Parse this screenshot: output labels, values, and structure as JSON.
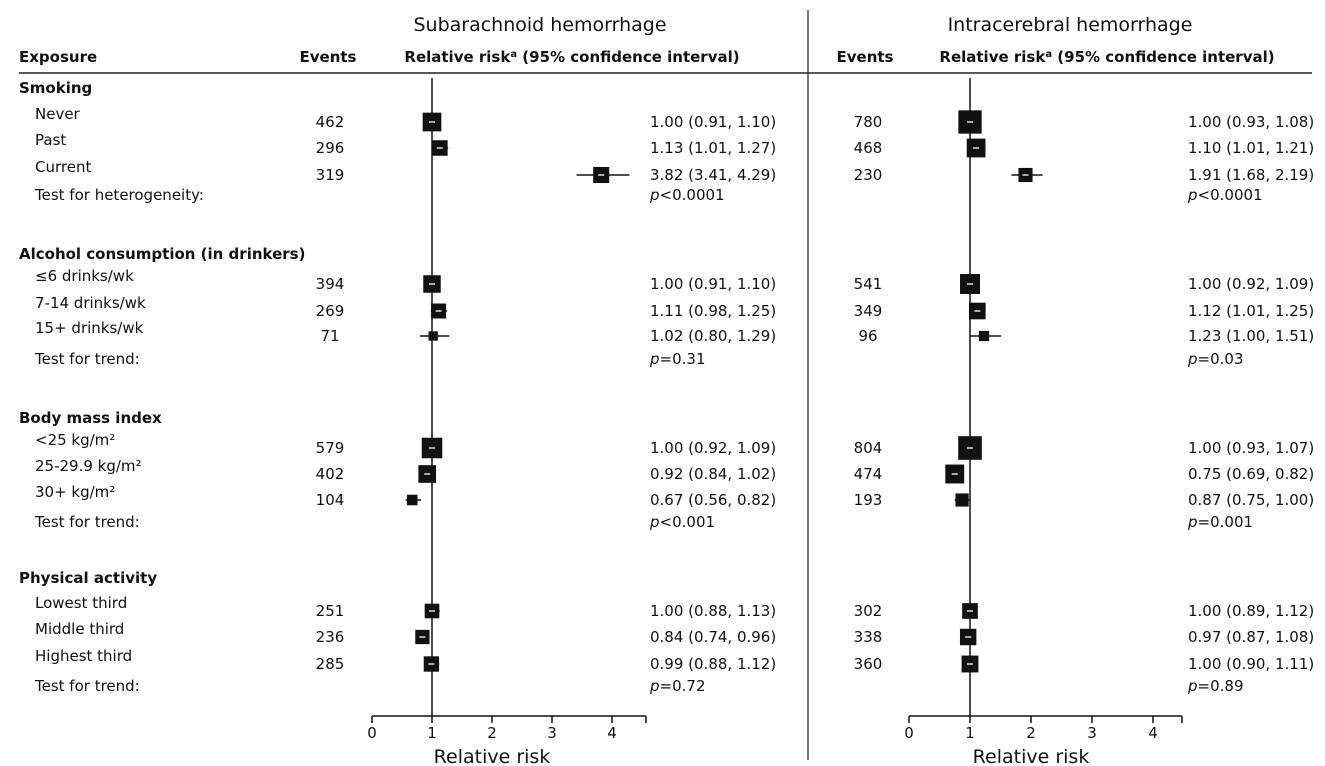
{
  "chart_data": {
    "type": "forest",
    "exposure_header": "Exposure",
    "events_header": "Events",
    "rr_header_main": "Relative risk",
    "rr_header_sup": "a",
    "rr_header_ci": "(95% confidence interval)",
    "sections": [
      {
        "title": "Smoking",
        "rows": [
          {
            "label": "Never",
            "sah": {
              "events": "462",
              "text": "1.00 (0.91, 1.10)",
              "rr": 1.0,
              "lo": 0.91,
              "hi": 1.1,
              "weight": 462
            },
            "ich": {
              "events": "780",
              "text": "1.00 (0.93, 1.08)",
              "rr": 1.0,
              "lo": 0.93,
              "hi": 1.08,
              "weight": 780
            }
          },
          {
            "label": "Past",
            "sah": {
              "events": "296",
              "text": "1.13 (1.01, 1.27)",
              "rr": 1.13,
              "lo": 1.01,
              "hi": 1.27,
              "weight": 296
            },
            "ich": {
              "events": "468",
              "text": "1.10 (1.01, 1.21)",
              "rr": 1.1,
              "lo": 1.01,
              "hi": 1.21,
              "weight": 468
            }
          },
          {
            "label": "Current",
            "sah": {
              "events": "319",
              "text": "3.82 (3.41, 4.29)",
              "rr": 3.82,
              "lo": 3.41,
              "hi": 4.29,
              "weight": 319
            },
            "ich": {
              "events": "230",
              "text": "1.91 (1.68, 2.19)",
              "rr": 1.91,
              "lo": 1.68,
              "hi": 2.19,
              "weight": 230
            }
          }
        ],
        "test_label": "Test for heterogeneity:",
        "sah_p": "<0.0001",
        "ich_p": "<0.0001"
      },
      {
        "title": "Alcohol consumption (in drinkers)",
        "rows": [
          {
            "label": "≤6 drinks/wk",
            "sah": {
              "events": "394",
              "text": "1.00 (0.91, 1.10)",
              "rr": 1.0,
              "lo": 0.91,
              "hi": 1.1,
              "weight": 394
            },
            "ich": {
              "events": "541",
              "text": "1.00 (0.92, 1.09)",
              "rr": 1.0,
              "lo": 0.92,
              "hi": 1.09,
              "weight": 541
            }
          },
          {
            "label": "7-14 drinks/wk",
            "sah": {
              "events": "269",
              "text": "1.11 (0.98, 1.25)",
              "rr": 1.11,
              "lo": 0.98,
              "hi": 1.25,
              "weight": 269
            },
            "ich": {
              "events": "349",
              "text": "1.12 (1.01, 1.25)",
              "rr": 1.12,
              "lo": 1.01,
              "hi": 1.25,
              "weight": 349
            }
          },
          {
            "label": "15+ drinks/wk",
            "sah": {
              "events": "71",
              "text": "1.02 (0.80, 1.29)",
              "rr": 1.02,
              "lo": 0.8,
              "hi": 1.29,
              "weight": 71
            },
            "ich": {
              "events": "96",
              "text": "1.23 (1.00, 1.51)",
              "rr": 1.23,
              "lo": 1.0,
              "hi": 1.51,
              "weight": 96
            }
          }
        ],
        "test_label": "Test for trend:",
        "sah_p": "=0.31",
        "ich_p": "=0.03"
      },
      {
        "title": "Body mass index",
        "rows": [
          {
            "label": "<25 kg/m²",
            "sah": {
              "events": "579",
              "text": "1.00 (0.92, 1.09)",
              "rr": 1.0,
              "lo": 0.92,
              "hi": 1.09,
              "weight": 579
            },
            "ich": {
              "events": "804",
              "text": "1.00 (0.93, 1.07)",
              "rr": 1.0,
              "lo": 0.93,
              "hi": 1.07,
              "weight": 804
            }
          },
          {
            "label": "25-29.9 kg/m²",
            "sah": {
              "events": "402",
              "text": "0.92 (0.84, 1.02)",
              "rr": 0.92,
              "lo": 0.84,
              "hi": 1.02,
              "weight": 402
            },
            "ich": {
              "events": "474",
              "text": "0.75 (0.69, 0.82)",
              "rr": 0.75,
              "lo": 0.69,
              "hi": 0.82,
              "weight": 474
            }
          },
          {
            "label": "30+ kg/m²",
            "sah": {
              "events": "104",
              "text": "0.67 (0.56, 0.82)",
              "rr": 0.67,
              "lo": 0.56,
              "hi": 0.82,
              "weight": 104
            },
            "ich": {
              "events": "193",
              "text": "0.87 (0.75, 1.00)",
              "rr": 0.87,
              "lo": 0.75,
              "hi": 1.0,
              "weight": 193
            }
          }
        ],
        "test_label": "Test for trend:",
        "sah_p": "<0.001",
        "ich_p": "=0.001"
      },
      {
        "title": "Physical activity",
        "rows": [
          {
            "label": "Lowest third",
            "sah": {
              "events": "251",
              "text": "1.00 (0.88, 1.13)",
              "rr": 1.0,
              "lo": 0.88,
              "hi": 1.13,
              "weight": 251
            },
            "ich": {
              "events": "302",
              "text": "1.00 (0.89, 1.12)",
              "rr": 1.0,
              "lo": 0.89,
              "hi": 1.12,
              "weight": 302
            }
          },
          {
            "label": "Middle third",
            "sah": {
              "events": "236",
              "text": "0.84 (0.74, 0.96)",
              "rr": 0.84,
              "lo": 0.74,
              "hi": 0.96,
              "weight": 236
            },
            "ich": {
              "events": "338",
              "text": "0.97 (0.87, 1.08)",
              "rr": 0.97,
              "lo": 0.87,
              "hi": 1.08,
              "weight": 338
            }
          },
          {
            "label": "Highest third",
            "sah": {
              "events": "285",
              "text": "0.99 (0.88, 1.12)",
              "rr": 0.99,
              "lo": 0.88,
              "hi": 1.12,
              "weight": 285
            },
            "ich": {
              "events": "360",
              "text": "1.00 (0.90, 1.11)",
              "rr": 1.0,
              "lo": 0.9,
              "hi": 1.11,
              "weight": 360
            }
          }
        ],
        "test_label": "Test for trend:",
        "sah_p": "=0.72",
        "ich_p": "=0.89"
      }
    ],
    "panels": [
      {
        "key": "sah",
        "title": "Subarachnoid hemorrhage",
        "xlabel": "Relative risk",
        "xlim": [
          0,
          4
        ],
        "xticks": [
          0,
          1,
          2,
          3,
          4
        ],
        "reference": 1
      },
      {
        "key": "ich",
        "title": "Intracerebral hemorrhage",
        "xlabel": "Relative risk",
        "xlim": [
          0,
          4
        ],
        "xticks": [
          0,
          1,
          2,
          3,
          4
        ],
        "reference": 1
      }
    ],
    "p_symbol": "p",
    "grid": false,
    "legend": "none"
  }
}
